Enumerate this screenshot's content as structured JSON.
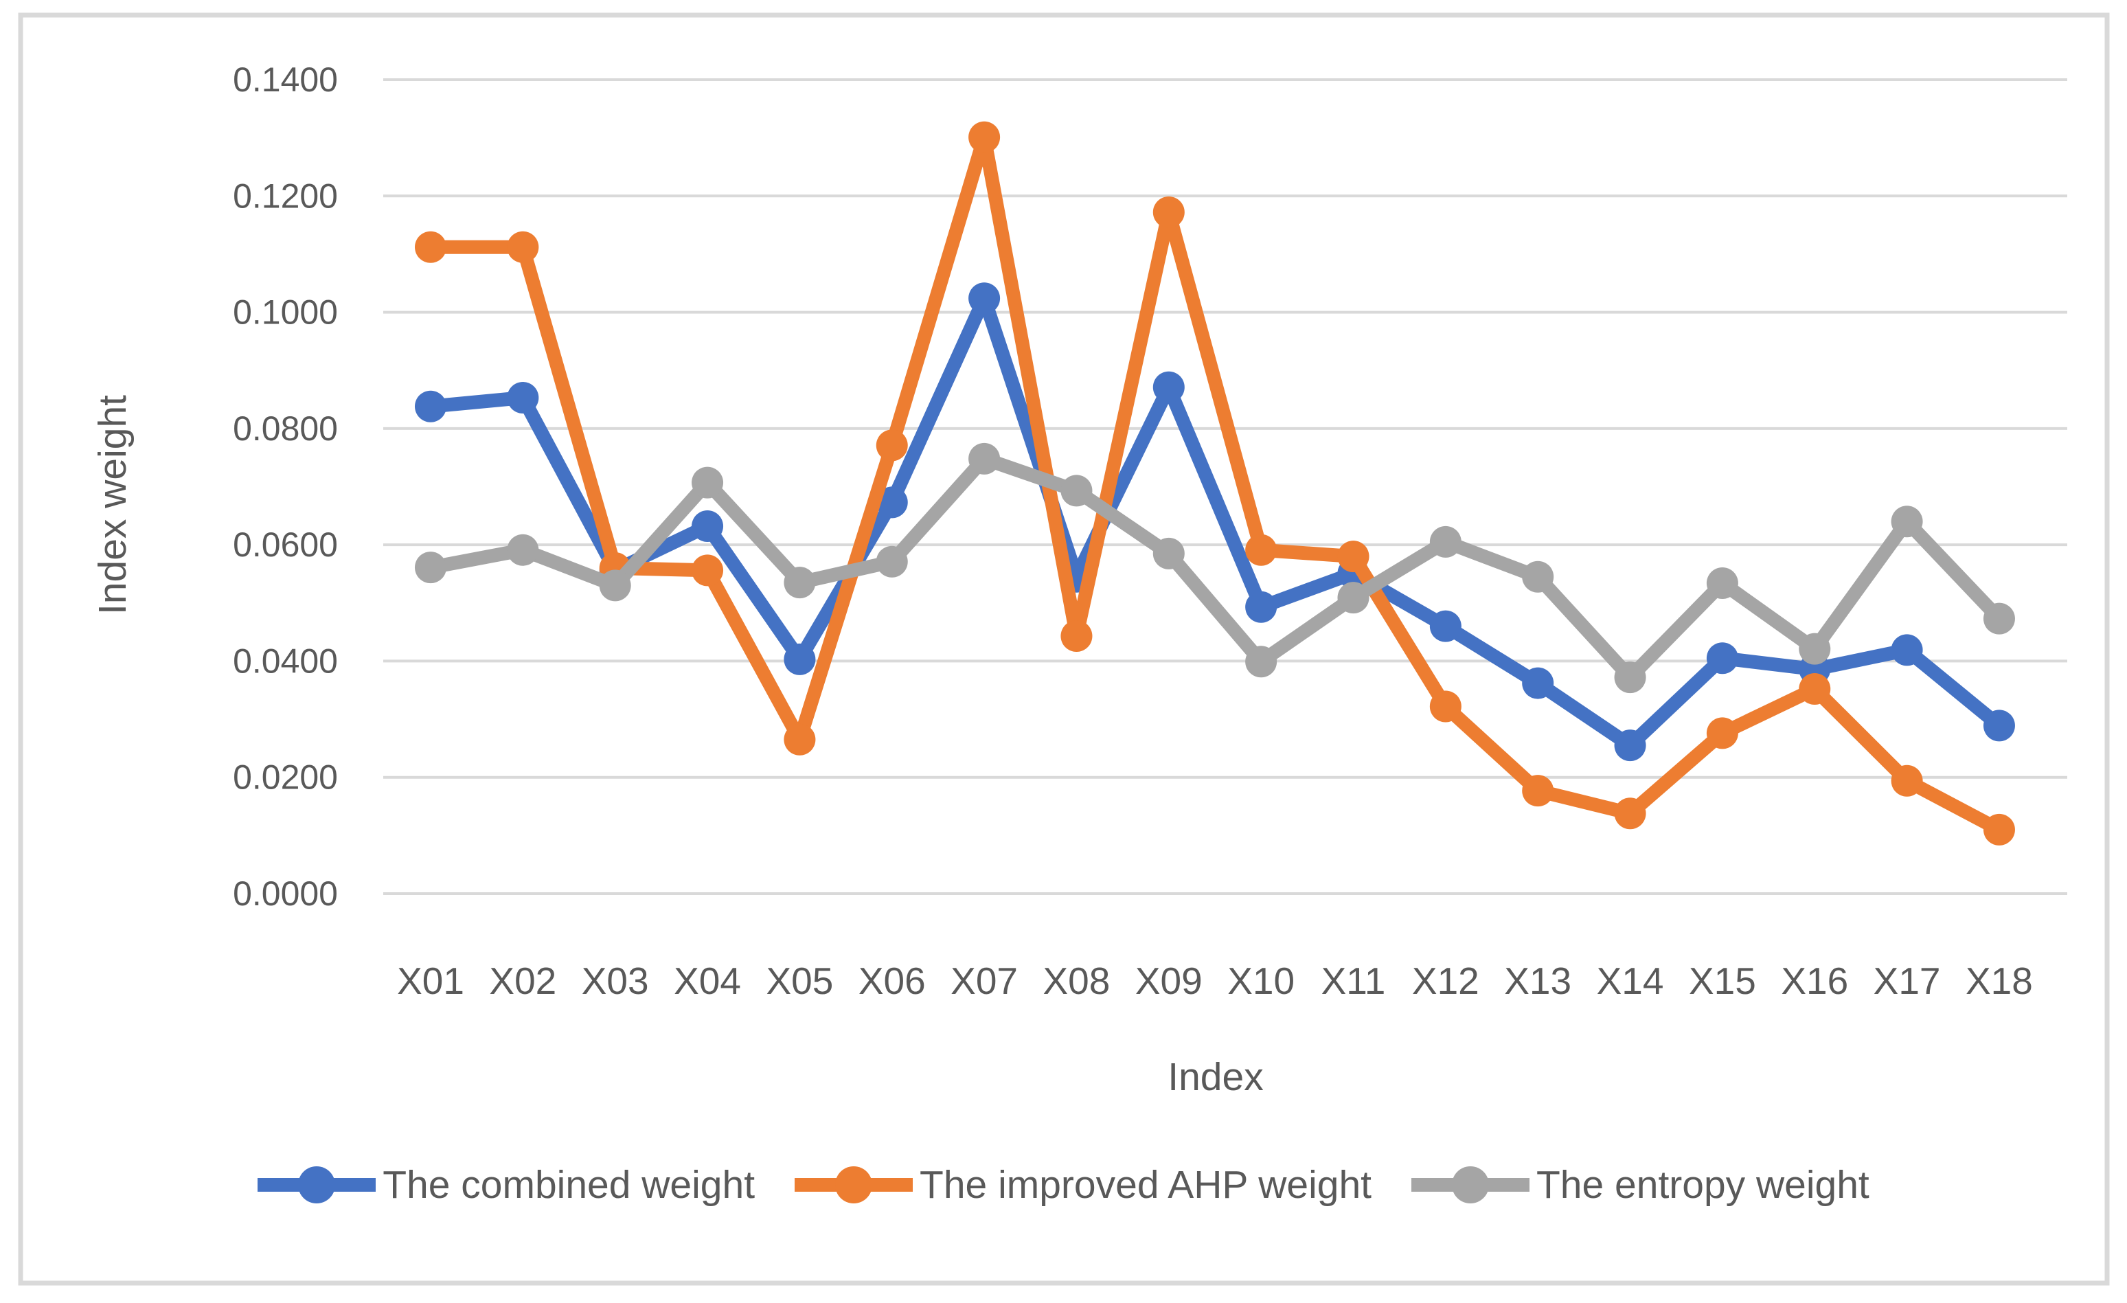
{
  "frame": {
    "background": "#FFFFFF",
    "border_color": "#D9D9D9",
    "gridline_color": "#D9D9D9",
    "text_color": "#595959"
  },
  "chart_data": {
    "type": "line",
    "title": "",
    "xlabel": "Index",
    "ylabel": "Index weight",
    "categories": [
      "X01",
      "X02",
      "X03",
      "X04",
      "X05",
      "X06",
      "X07",
      "X08",
      "X09",
      "X10",
      "X11",
      "X12",
      "X13",
      "X14",
      "X15",
      "X16",
      "X17",
      "X18"
    ],
    "series": [
      {
        "key": "combined",
        "name": "The combined weight",
        "color": "#4472C4",
        "values": [
          0.0838,
          0.0853,
          0.0556,
          0.0632,
          0.0403,
          0.0673,
          0.1024,
          0.0545,
          0.0871,
          0.0493,
          0.0551,
          0.046,
          0.0362,
          0.0255,
          0.0405,
          0.0386,
          0.0419,
          0.0289
        ]
      },
      {
        "key": "improved-ahp",
        "name": "The improved AHP weight",
        "color": "#ED7D31",
        "values": [
          0.1112,
          0.1112,
          0.056,
          0.0556,
          0.0265,
          0.0771,
          0.1301,
          0.0443,
          0.1172,
          0.0591,
          0.058,
          0.0322,
          0.0177,
          0.0138,
          0.0276,
          0.0352,
          0.0194,
          0.011
        ]
      },
      {
        "key": "entropy",
        "name": "The entropy weight",
        "color": "#A5A5A5",
        "values": [
          0.0561,
          0.0591,
          0.053,
          0.0707,
          0.0535,
          0.0571,
          0.0748,
          0.0693,
          0.0585,
          0.0399,
          0.0509,
          0.0605,
          0.0545,
          0.0372,
          0.0534,
          0.0421,
          0.064,
          0.0473
        ]
      }
    ],
    "ylim": [
      0.0,
      0.14
    ],
    "ytick_step": 0.02,
    "ytick_labels": [
      "0.0000",
      "0.0200",
      "0.0400",
      "0.0600",
      "0.0800",
      "0.1000",
      "0.1200",
      "0.1400"
    ],
    "grid": true,
    "legend_position": "bottom"
  }
}
